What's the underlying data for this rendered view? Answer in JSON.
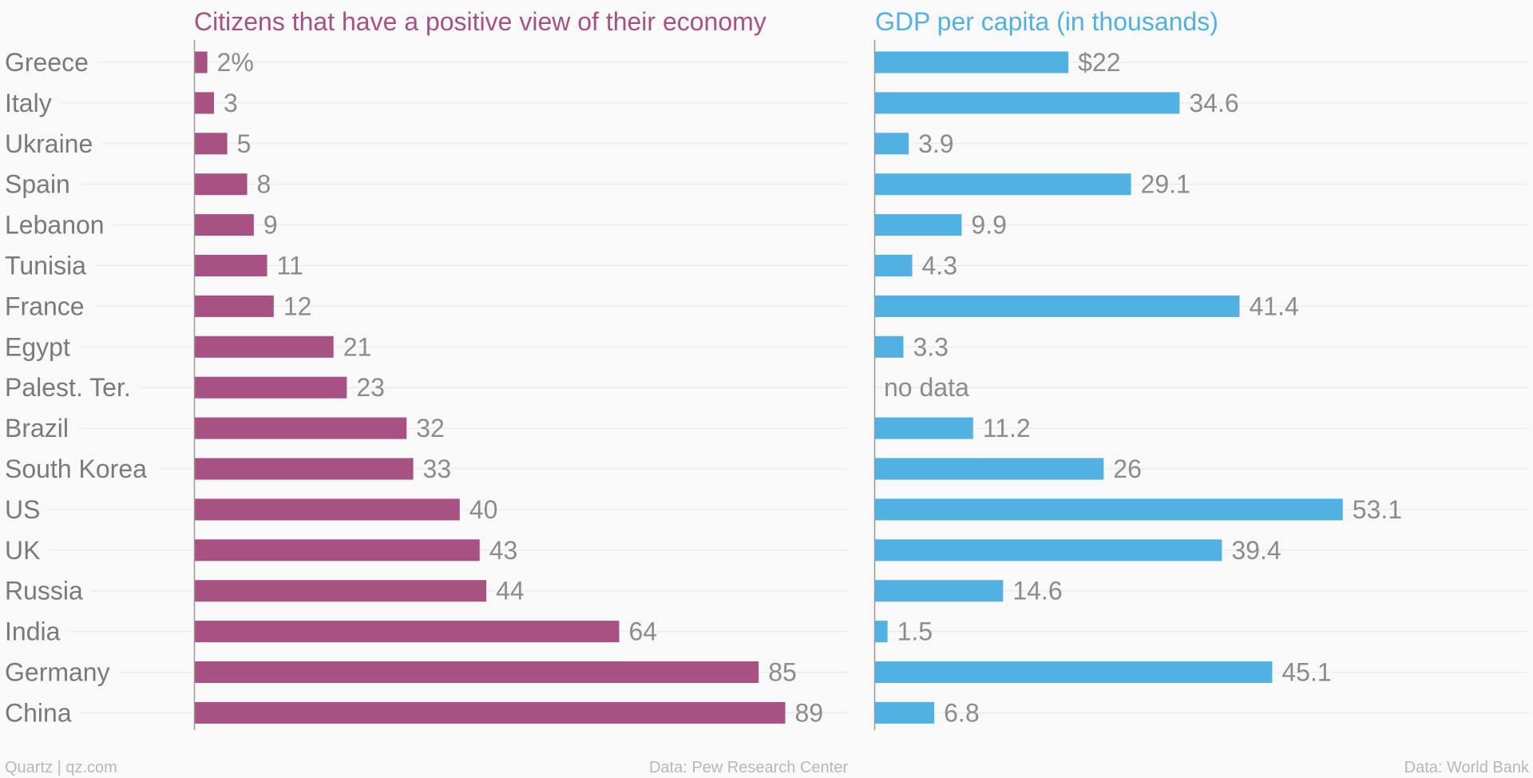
{
  "chart_data": [
    {
      "type": "bar",
      "orientation": "horizontal",
      "title": "Citizens that have a positive view of their economy",
      "categories": [
        "Greece",
        "Italy",
        "Ukraine",
        "Spain",
        "Lebanon",
        "Tunisia",
        "France",
        "Egypt",
        "Palest. Ter.",
        "Brazil",
        "South Korea",
        "US",
        "UK",
        "Russia",
        "India",
        "Germany",
        "China"
      ],
      "values": [
        2,
        3,
        5,
        8,
        9,
        11,
        12,
        21,
        23,
        32,
        33,
        40,
        43,
        44,
        64,
        85,
        89
      ],
      "value_labels": [
        "2%",
        "3",
        "5",
        "8",
        "9",
        "11",
        "12",
        "21",
        "23",
        "32",
        "33",
        "40",
        "43",
        "44",
        "64",
        "85",
        "89"
      ],
      "color": "#a85283",
      "source": "Data: Pew Research Center",
      "grid": true
    },
    {
      "type": "bar",
      "orientation": "horizontal",
      "title": "GDP per capita (in thousands)",
      "categories": [
        "Greece",
        "Italy",
        "Ukraine",
        "Spain",
        "Lebanon",
        "Tunisia",
        "France",
        "Egypt",
        "Palest. Ter.",
        "Brazil",
        "South Korea",
        "US",
        "UK",
        "Russia",
        "India",
        "Germany",
        "China"
      ],
      "values": [
        22,
        34.6,
        3.9,
        29.1,
        9.9,
        4.3,
        41.4,
        3.3,
        null,
        11.2,
        26,
        53.1,
        39.4,
        14.6,
        1.5,
        45.1,
        6.8
      ],
      "value_labels": [
        "$22",
        "34.6",
        "3.9",
        "29.1",
        "9.9",
        "4.3",
        "41.4",
        "3.3",
        "no data",
        "11.2",
        "26",
        "53.1",
        "39.4",
        "14.6",
        "1.5",
        "45.1",
        "6.8"
      ],
      "color": "#51b1e2",
      "source": "Data: World Bank",
      "grid": true
    }
  ],
  "footer": {
    "credit": "Quartz | qz.com"
  },
  "colors": {
    "background": "#f9f9f9",
    "text": "#8c8c8c",
    "category_text": "#7a7a7a",
    "gridline": "#e8e8e8",
    "axis": "#9a9a9a"
  }
}
